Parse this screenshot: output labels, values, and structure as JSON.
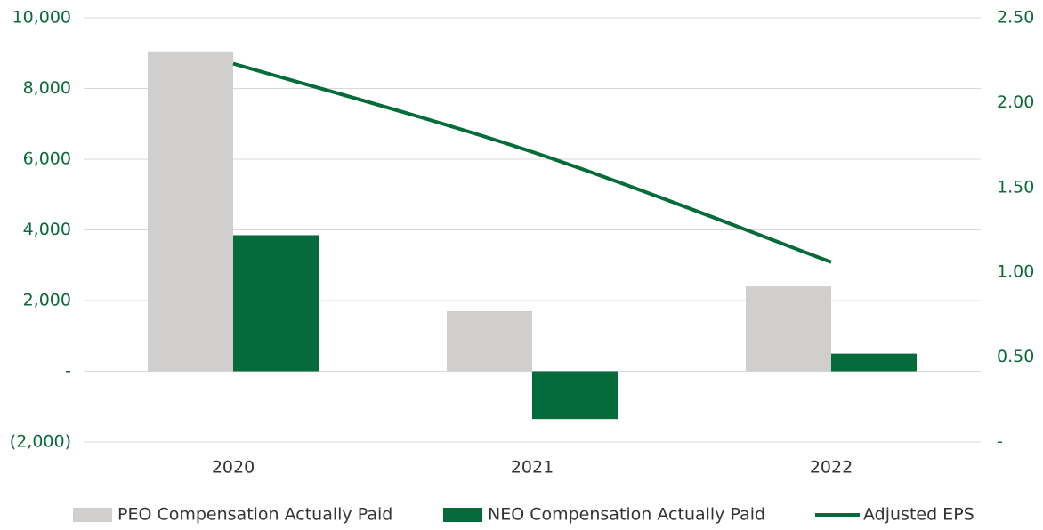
{
  "chart_data": {
    "type": "bar_line",
    "categories": [
      "2020",
      "2021",
      "2022"
    ],
    "series": [
      {
        "name": "PEO Compensation Actually Paid",
        "color": "#d0cfcd",
        "type": "bar",
        "values": [
          9050,
          1700,
          2400
        ]
      },
      {
        "name": "NEO Compensation Actually Paid",
        "color": "#056b3a",
        "type": "bar",
        "values": [
          3850,
          -1350,
          500
        ]
      },
      {
        "name": "Adjusted EPS",
        "color": "#056b3a",
        "type": "line",
        "axis": "y2",
        "values": [
          2.23,
          1.71,
          1.06
        ]
      }
    ],
    "ylim": [
      -2000,
      10000
    ],
    "yticks": [
      {
        "value": -2000,
        "label": "(2,000)"
      },
      {
        "value": 0,
        "label": "-"
      },
      {
        "value": 2000,
        "label": "2,000"
      },
      {
        "value": 4000,
        "label": "4,000"
      },
      {
        "value": 6000,
        "label": "6,000"
      },
      {
        "value": 8000,
        "label": "8,000"
      },
      {
        "value": 10000,
        "label": "10,000"
      }
    ],
    "y2lim": [
      0,
      2.5
    ],
    "y2ticks": [
      {
        "value": 0,
        "label": "-"
      },
      {
        "value": 0.5,
        "label": "0.50"
      },
      {
        "value": 1,
        "label": "1.00"
      },
      {
        "value": 1.5,
        "label": "1.50"
      },
      {
        "value": 2,
        "label": "2.00"
      },
      {
        "value": 2.5,
        "label": "2.50"
      }
    ],
    "grid": true,
    "legend": "bottom"
  }
}
